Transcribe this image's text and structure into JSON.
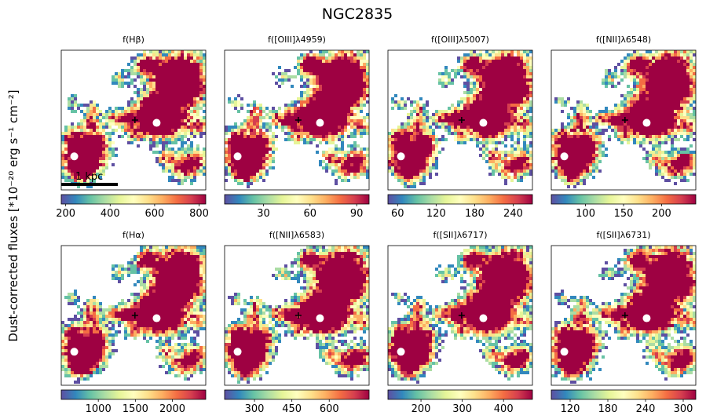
{
  "figure": {
    "title": "NGC2835",
    "ylabel": "Dust-corrected fluxes [*10⁻²⁰ erg s⁻¹ cm⁻²]",
    "scalebar_label": "1 kpc"
  },
  "colormap": [
    "#5e4fa2",
    "#3288bd",
    "#66c2a5",
    "#abdda4",
    "#e6f598",
    "#ffffbf",
    "#fee08b",
    "#fdae61",
    "#f46d43",
    "#d53e4f",
    "#9e0142"
  ],
  "chart_data": [
    {
      "type": "heatmap",
      "title": "f(Hβ)",
      "clim": [
        180,
        830
      ],
      "ticks": [
        200,
        400,
        600,
        800
      ],
      "tick_labels": [
        "200",
        "400",
        "600",
        "800"
      ],
      "density": 1.0
    },
    {
      "type": "heatmap",
      "title": "f([OIII]λ4959)",
      "clim": [
        5,
        98
      ],
      "ticks": [
        30,
        60,
        90
      ],
      "tick_labels": [
        "30",
        "60",
        "90"
      ],
      "density": 0.85
    },
    {
      "type": "heatmap",
      "title": "f([OIII]λ5007)",
      "clim": [
        45,
        270
      ],
      "ticks": [
        60,
        120,
        180,
        240
      ],
      "tick_labels": [
        "60",
        "120",
        "180",
        "240"
      ],
      "density": 0.95
    },
    {
      "type": "heatmap",
      "title": "f([NII]λ6548)",
      "clim": [
        55,
        245
      ],
      "ticks": [
        100,
        150,
        200
      ],
      "tick_labels": [
        "100",
        "150",
        "200"
      ],
      "density": 1.0
    },
    {
      "type": "heatmap",
      "title": "f(Hα)",
      "clim": [
        500,
        2450
      ],
      "ticks": [
        1000,
        1500,
        2000
      ],
      "tick_labels": [
        "1000",
        "1500",
        "2000"
      ],
      "density": 1.0
    },
    {
      "type": "heatmap",
      "title": "f([NII]λ6583)",
      "clim": [
        180,
        760
      ],
      "ticks": [
        300,
        450,
        600
      ],
      "tick_labels": [
        "300",
        "450",
        "600"
      ],
      "density": 1.0
    },
    {
      "type": "heatmap",
      "title": "f([SII]λ6717)",
      "clim": [
        120,
        470
      ],
      "ticks": [
        200,
        300,
        400
      ],
      "tick_labels": [
        "200",
        "300",
        "400"
      ],
      "density": 1.0
    },
    {
      "type": "heatmap",
      "title": "f([SII]λ6731)",
      "clim": [
        90,
        320
      ],
      "ticks": [
        120,
        180,
        240,
        300
      ],
      "tick_labels": [
        "120",
        "180",
        "240",
        "300"
      ],
      "density": 1.0
    }
  ]
}
